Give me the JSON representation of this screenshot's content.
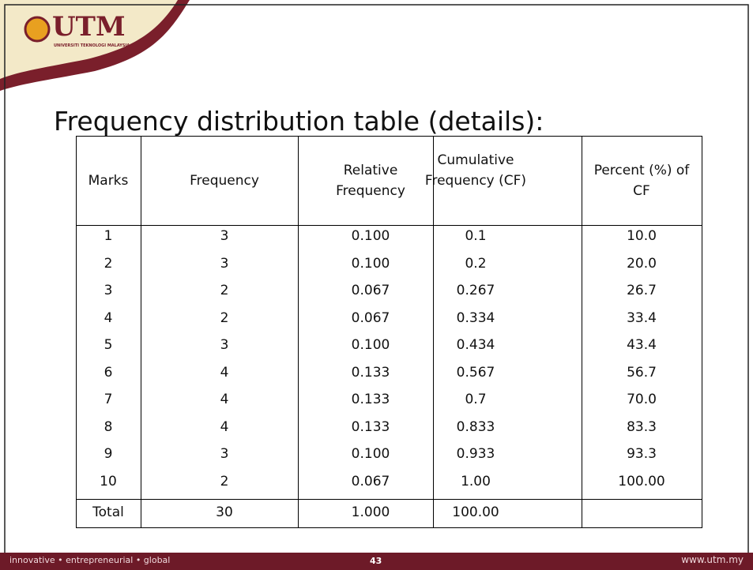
{
  "logo": {
    "name": "UTM",
    "subtitle": "UNIVERSITI TEKNOLOGI MALAYSIA"
  },
  "title": "Frequency distribution table (details):",
  "table": {
    "headers": [
      "Marks",
      "Frequency",
      "Relative Frequency",
      "Cumulative Frequency (CF)",
      "Percent (%) of CF"
    ],
    "rows": [
      [
        "1",
        "3",
        "0.100",
        "0.1",
        "10.0"
      ],
      [
        "2",
        "3",
        "0.100",
        "0.2",
        "20.0"
      ],
      [
        "3",
        "2",
        "0.067",
        "0.267",
        "26.7"
      ],
      [
        "4",
        "2",
        "0.067",
        "0.334",
        "33.4"
      ],
      [
        "5",
        "3",
        "0.100",
        "0.434",
        "43.4"
      ],
      [
        "6",
        "4",
        "0.133",
        "0.567",
        "56.7"
      ],
      [
        "7",
        "4",
        "0.133",
        "0.7",
        "70.0"
      ],
      [
        "8",
        "4",
        "0.133",
        "0.833",
        "83.3"
      ],
      [
        "9",
        "3",
        "0.100",
        "0.933",
        "93.3"
      ],
      [
        "10",
        "2",
        "0.067",
        "1.00",
        "100.00"
      ]
    ],
    "total": [
      "Total",
      "30",
      "1.000",
      "100.00"
    ]
  },
  "footer": {
    "tagline": "innovative • entrepreneurial • global",
    "page": "43",
    "url": "www.utm.my"
  }
}
